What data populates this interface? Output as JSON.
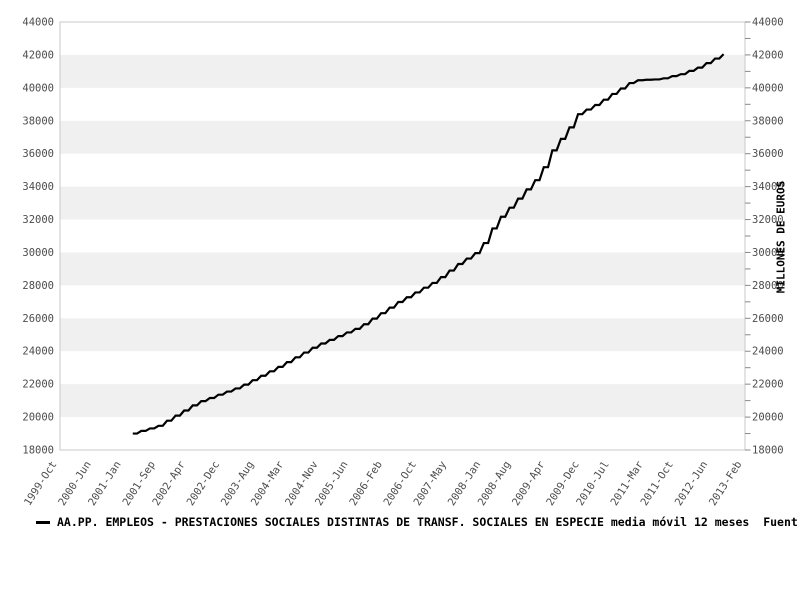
{
  "chart_data": {
    "type": "line",
    "title": "",
    "ylabel": "MILLONES DE EUROS",
    "legend_label": "AA.PP. EMPLEOS - PRESTACIONES SOCIALES DISTINTAS DE TRANSF. SOCIALES EN ESPECIE media móvil 12 meses  Fuent",
    "legend_position": "bottom-left",
    "grid": "alternating-horizontal-bands",
    "colors": {
      "line": "#000000",
      "band": "#f0f0f0",
      "plot_border": "#c8c8c8",
      "tick_mark": "#888888",
      "tick_text": "#4c4c4c",
      "background": "#ffffff"
    },
    "x_axis": {
      "start": "1999-Oct",
      "end": "2013-Feb",
      "total_months": 160,
      "tick_labels": [
        "1999-Oct",
        "2000-Jun",
        "2001-Jan",
        "2001-Sep",
        "2002-Apr",
        "2002-Dec",
        "2003-Aug",
        "2004-Mar",
        "2004-Nov",
        "2005-Jun",
        "2006-Feb",
        "2006-Oct",
        "2007-May",
        "2008-Jan",
        "2008-Aug",
        "2009-Apr",
        "2009-Dec",
        "2010-Jul",
        "2011-Mar",
        "2011-Oct",
        "2012-Jun",
        "2013-Feb"
      ],
      "tick_month_offsets": [
        0,
        8,
        15,
        23,
        30,
        38,
        46,
        53,
        61,
        68,
        76,
        84,
        91,
        99,
        106,
        114,
        122,
        129,
        137,
        144,
        152,
        160
      ]
    },
    "y_axis": {
      "min": 18000,
      "max": 44000,
      "major_step": 2000,
      "minor_step": 1000,
      "tick_labels": [
        "18000",
        "20000",
        "22000",
        "24000",
        "26000",
        "28000",
        "30000",
        "32000",
        "34000",
        "36000",
        "38000",
        "40000",
        "42000",
        "44000"
      ]
    },
    "series": [
      {
        "name": "AA.PP. EMPLEOS - PRESTACIONES SOCIALES DISTINTAS DE TRANSF. SOCIALES EN ESPECIE media móvil 12 meses",
        "frequency": "monthly",
        "start_month": "2001-Mar",
        "end_month": "2012-Sep",
        "start_month_offset_from_axis": 17,
        "values": [
          19000,
          19000,
          19160,
          19160,
          19310,
          19310,
          19470,
          19470,
          19780,
          19780,
          20090,
          20090,
          20400,
          20400,
          20710,
          20710,
          20970,
          20970,
          21160,
          21160,
          21360,
          21360,
          21550,
          21550,
          21740,
          21740,
          21970,
          21970,
          22240,
          22240,
          22510,
          22510,
          22780,
          22780,
          23050,
          23050,
          23340,
          23340,
          23630,
          23630,
          23920,
          23920,
          24210,
          24210,
          24470,
          24470,
          24690,
          24690,
          24920,
          24920,
          25140,
          25140,
          25360,
          25360,
          25640,
          25640,
          25980,
          25980,
          26310,
          26310,
          26650,
          26650,
          26990,
          26990,
          27280,
          27280,
          27570,
          27570,
          27860,
          27860,
          28150,
          28150,
          28500,
          28500,
          28900,
          28900,
          29300,
          29300,
          29630,
          29630,
          29960,
          29960,
          30570,
          30570,
          31460,
          31460,
          32170,
          32170,
          32720,
          32720,
          33270,
          33270,
          33830,
          33830,
          34390,
          34390,
          35180,
          35180,
          36200,
          36200,
          36900,
          36900,
          37600,
          37600,
          38400,
          38400,
          38680,
          38680,
          38960,
          38960,
          39280,
          39280,
          39630,
          39630,
          39960,
          39960,
          40290,
          40290,
          40460,
          40460,
          40490,
          40490,
          40510,
          40510,
          40580,
          40580,
          40710,
          40710,
          40830,
          40830,
          41030,
          41030,
          41230,
          41230,
          41500,
          41500,
          41780,
          41780,
          42050
        ]
      }
    ]
  }
}
